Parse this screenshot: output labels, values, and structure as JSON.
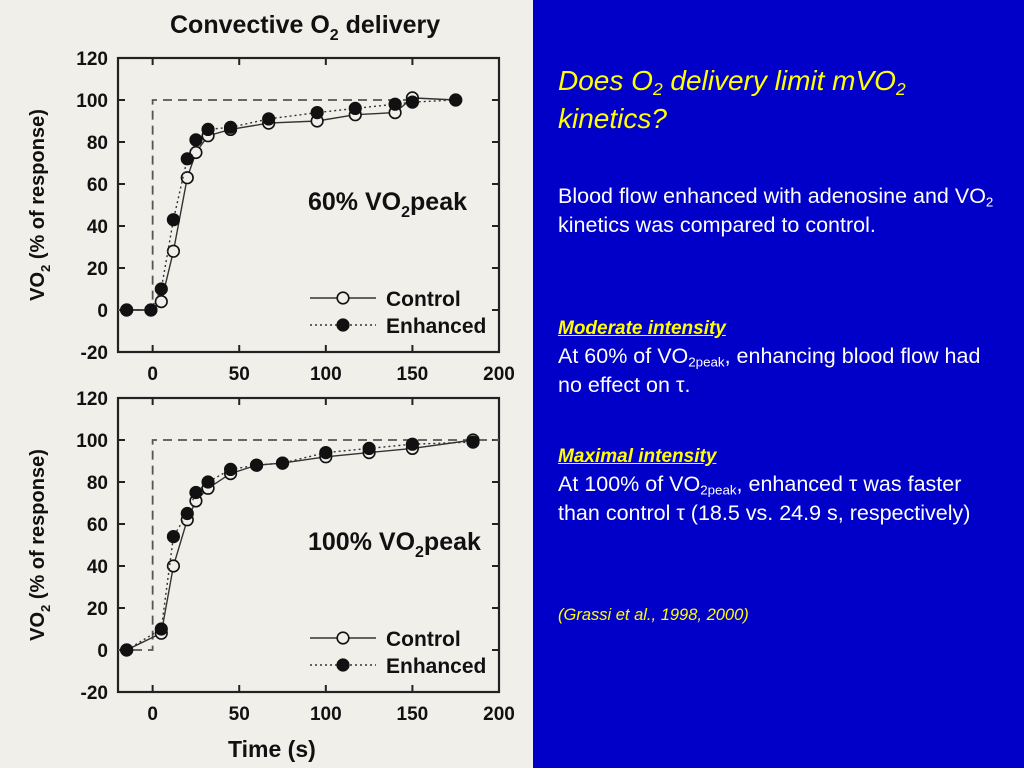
{
  "figure": {
    "title": "Convective O",
    "title_sub": "2",
    "title_suffix": " delivery",
    "ylabel_main": "VO",
    "ylabel_sub": "2",
    "ylabel_suffix": " (% of response)",
    "xlabel": "Time (s)"
  },
  "chart_data": [
    {
      "type": "line",
      "panel_label_main": "60% ",
      "panel_label_vo": "VO",
      "panel_label_sub": "2",
      "panel_label_suffix": "peak",
      "xlim": [
        -20,
        200
      ],
      "ylim": [
        -20,
        120
      ],
      "xticks": [
        "0",
        "50",
        "100",
        "150",
        "200"
      ],
      "yticks": [
        "-20",
        "0",
        "20",
        "40",
        "60",
        "80",
        "100",
        "120"
      ],
      "dashed_reference": {
        "x": [
          -20,
          0,
          0,
          150
        ],
        "y": [
          0,
          0,
          100,
          100
        ]
      },
      "series": [
        {
          "name": "Control",
          "marker": "open-circle",
          "x": [
            -15,
            -1,
            5,
            12,
            20,
            25,
            32,
            45,
            67,
            95,
            117,
            140,
            150,
            175
          ],
          "y": [
            0,
            0,
            4,
            28,
            63,
            75,
            83,
            86,
            89,
            90,
            93,
            94,
            101,
            100
          ]
        },
        {
          "name": "Enhanced",
          "marker": "filled-circle",
          "x": [
            -15,
            -1,
            5,
            12,
            20,
            25,
            32,
            45,
            67,
            95,
            117,
            140,
            150,
            175
          ],
          "y": [
            0,
            0,
            10,
            43,
            72,
            81,
            86,
            87,
            91,
            94,
            96,
            98,
            99,
            100
          ]
        }
      ]
    },
    {
      "type": "line",
      "panel_label_main": "100% ",
      "panel_label_vo": "VO",
      "panel_label_sub": "2",
      "panel_label_suffix": "peak",
      "xlim": [
        -20,
        200
      ],
      "ylim": [
        -20,
        120
      ],
      "xticks": [
        "0",
        "50",
        "100",
        "150",
        "200"
      ],
      "yticks": [
        "-20",
        "0",
        "20",
        "40",
        "60",
        "80",
        "100",
        "120"
      ],
      "dashed_reference": {
        "x": [
          -20,
          0,
          0,
          200
        ],
        "y": [
          0,
          0,
          100,
          100
        ]
      },
      "series": [
        {
          "name": "Control",
          "marker": "open-circle",
          "x": [
            -15,
            5,
            12,
            20,
            25,
            32,
            45,
            60,
            75,
            100,
            125,
            150,
            185
          ],
          "y": [
            0,
            8,
            40,
            62,
            71,
            77,
            84,
            88,
            89,
            92,
            94,
            96,
            100
          ]
        },
        {
          "name": "Enhanced",
          "marker": "filled-circle",
          "x": [
            -15,
            5,
            12,
            20,
            25,
            32,
            45,
            60,
            75,
            100,
            125,
            150,
            185
          ],
          "y": [
            0,
            10,
            54,
            65,
            75,
            80,
            86,
            88,
            89,
            94,
            96,
            98,
            99
          ]
        }
      ]
    }
  ],
  "slide": {
    "title_a": "Does O",
    "title_sub": "2",
    "title_b": " delivery limit mVO",
    "title_sub2": "2",
    "title_c": " kinetics?",
    "intro_a": "Blood flow enhanced with adenosine and VO",
    "intro_sub": "2",
    "intro_b": " kinetics was compared to control.",
    "moderate_heading": "Moderate intensity",
    "moderate_a": "At 60% of VO",
    "moderate_sub": "2peak",
    "moderate_b": ", enhancing blood flow had no effect on τ.",
    "maximal_heading": "Maximal intensity",
    "maximal_a": "At 100% of VO",
    "maximal_sub": "2peak",
    "maximal_b": ", enhanced τ was faster than control τ (18.5 vs. 24.9 s, respectively)",
    "citation": "(Grassi et al., 1998, 2000)"
  },
  "colors": {
    "panel_bg": "#0000c8",
    "title_color": "#ffff00",
    "body_text": "#ffffff",
    "figure_bg": "#f0efea"
  }
}
